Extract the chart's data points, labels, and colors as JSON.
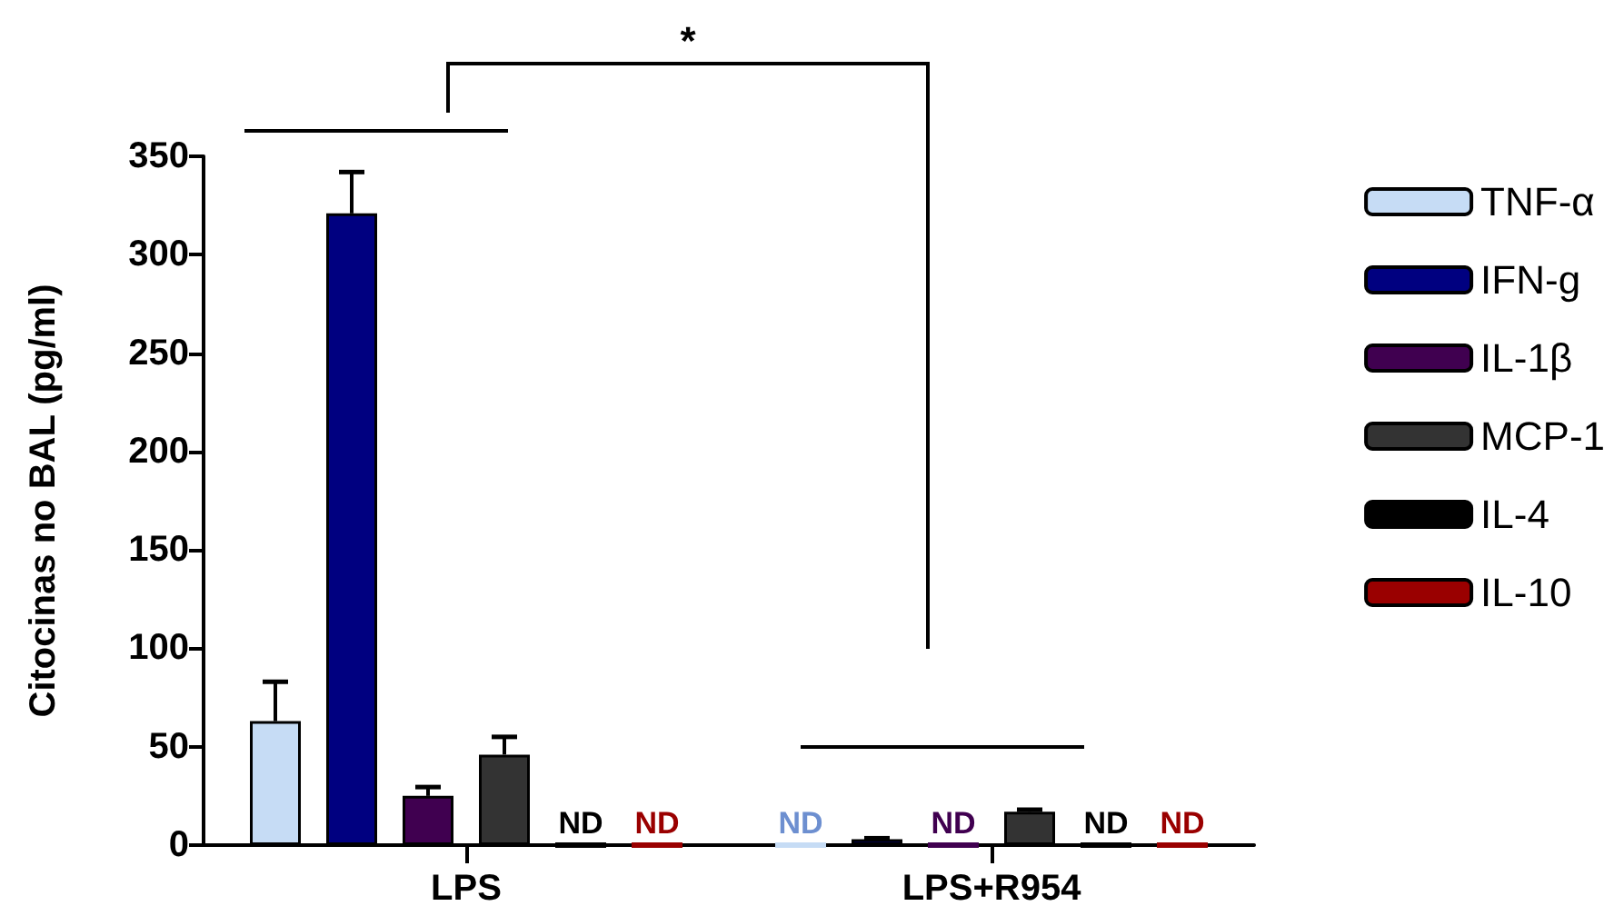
{
  "chart_data": {
    "type": "bar",
    "ylabel": "Citocinas no BAL (pg/ml)",
    "categories": [
      "LPS",
      "LPS+R954"
    ],
    "ylim": [
      0,
      350
    ],
    "yticks": [
      0,
      50,
      100,
      150,
      200,
      250,
      300,
      350
    ],
    "legend": "right",
    "grid": false,
    "annotations": [
      "*"
    ],
    "series": [
      {
        "name": "TNF-α",
        "color": "#c6dcf5",
        "values": [
          63,
          0
        ],
        "errors": [
          [
            63,
            83
          ],
          null
        ],
        "value_labels": [
          null,
          "ND"
        ]
      },
      {
        "name": "IFN-g",
        "color": "#000080",
        "values": [
          321,
          3
        ],
        "errors": [
          [
            321,
            342
          ],
          [
            3,
            3.5
          ]
        ],
        "value_labels": [
          null,
          null
        ]
      },
      {
        "name": "IL-1β",
        "color": "#400050",
        "values": [
          25,
          0
        ],
        "errors": [
          [
            25,
            29.5
          ],
          null
        ],
        "value_labels": [
          null,
          "ND"
        ]
      },
      {
        "name": "MCP-1",
        "color": "#333333",
        "values": [
          46,
          17
        ],
        "errors": [
          [
            46,
            55
          ],
          [
            17,
            18
          ]
        ],
        "value_labels": [
          null,
          null
        ]
      },
      {
        "name": "IL-4",
        "color": "#000000",
        "values": [
          0,
          0
        ],
        "value_labels": [
          "ND",
          "ND"
        ]
      },
      {
        "name": "IL-10",
        "color": "#9a0000",
        "values": [
          0,
          0
        ],
        "value_labels": [
          "ND",
          "ND"
        ]
      }
    ]
  }
}
